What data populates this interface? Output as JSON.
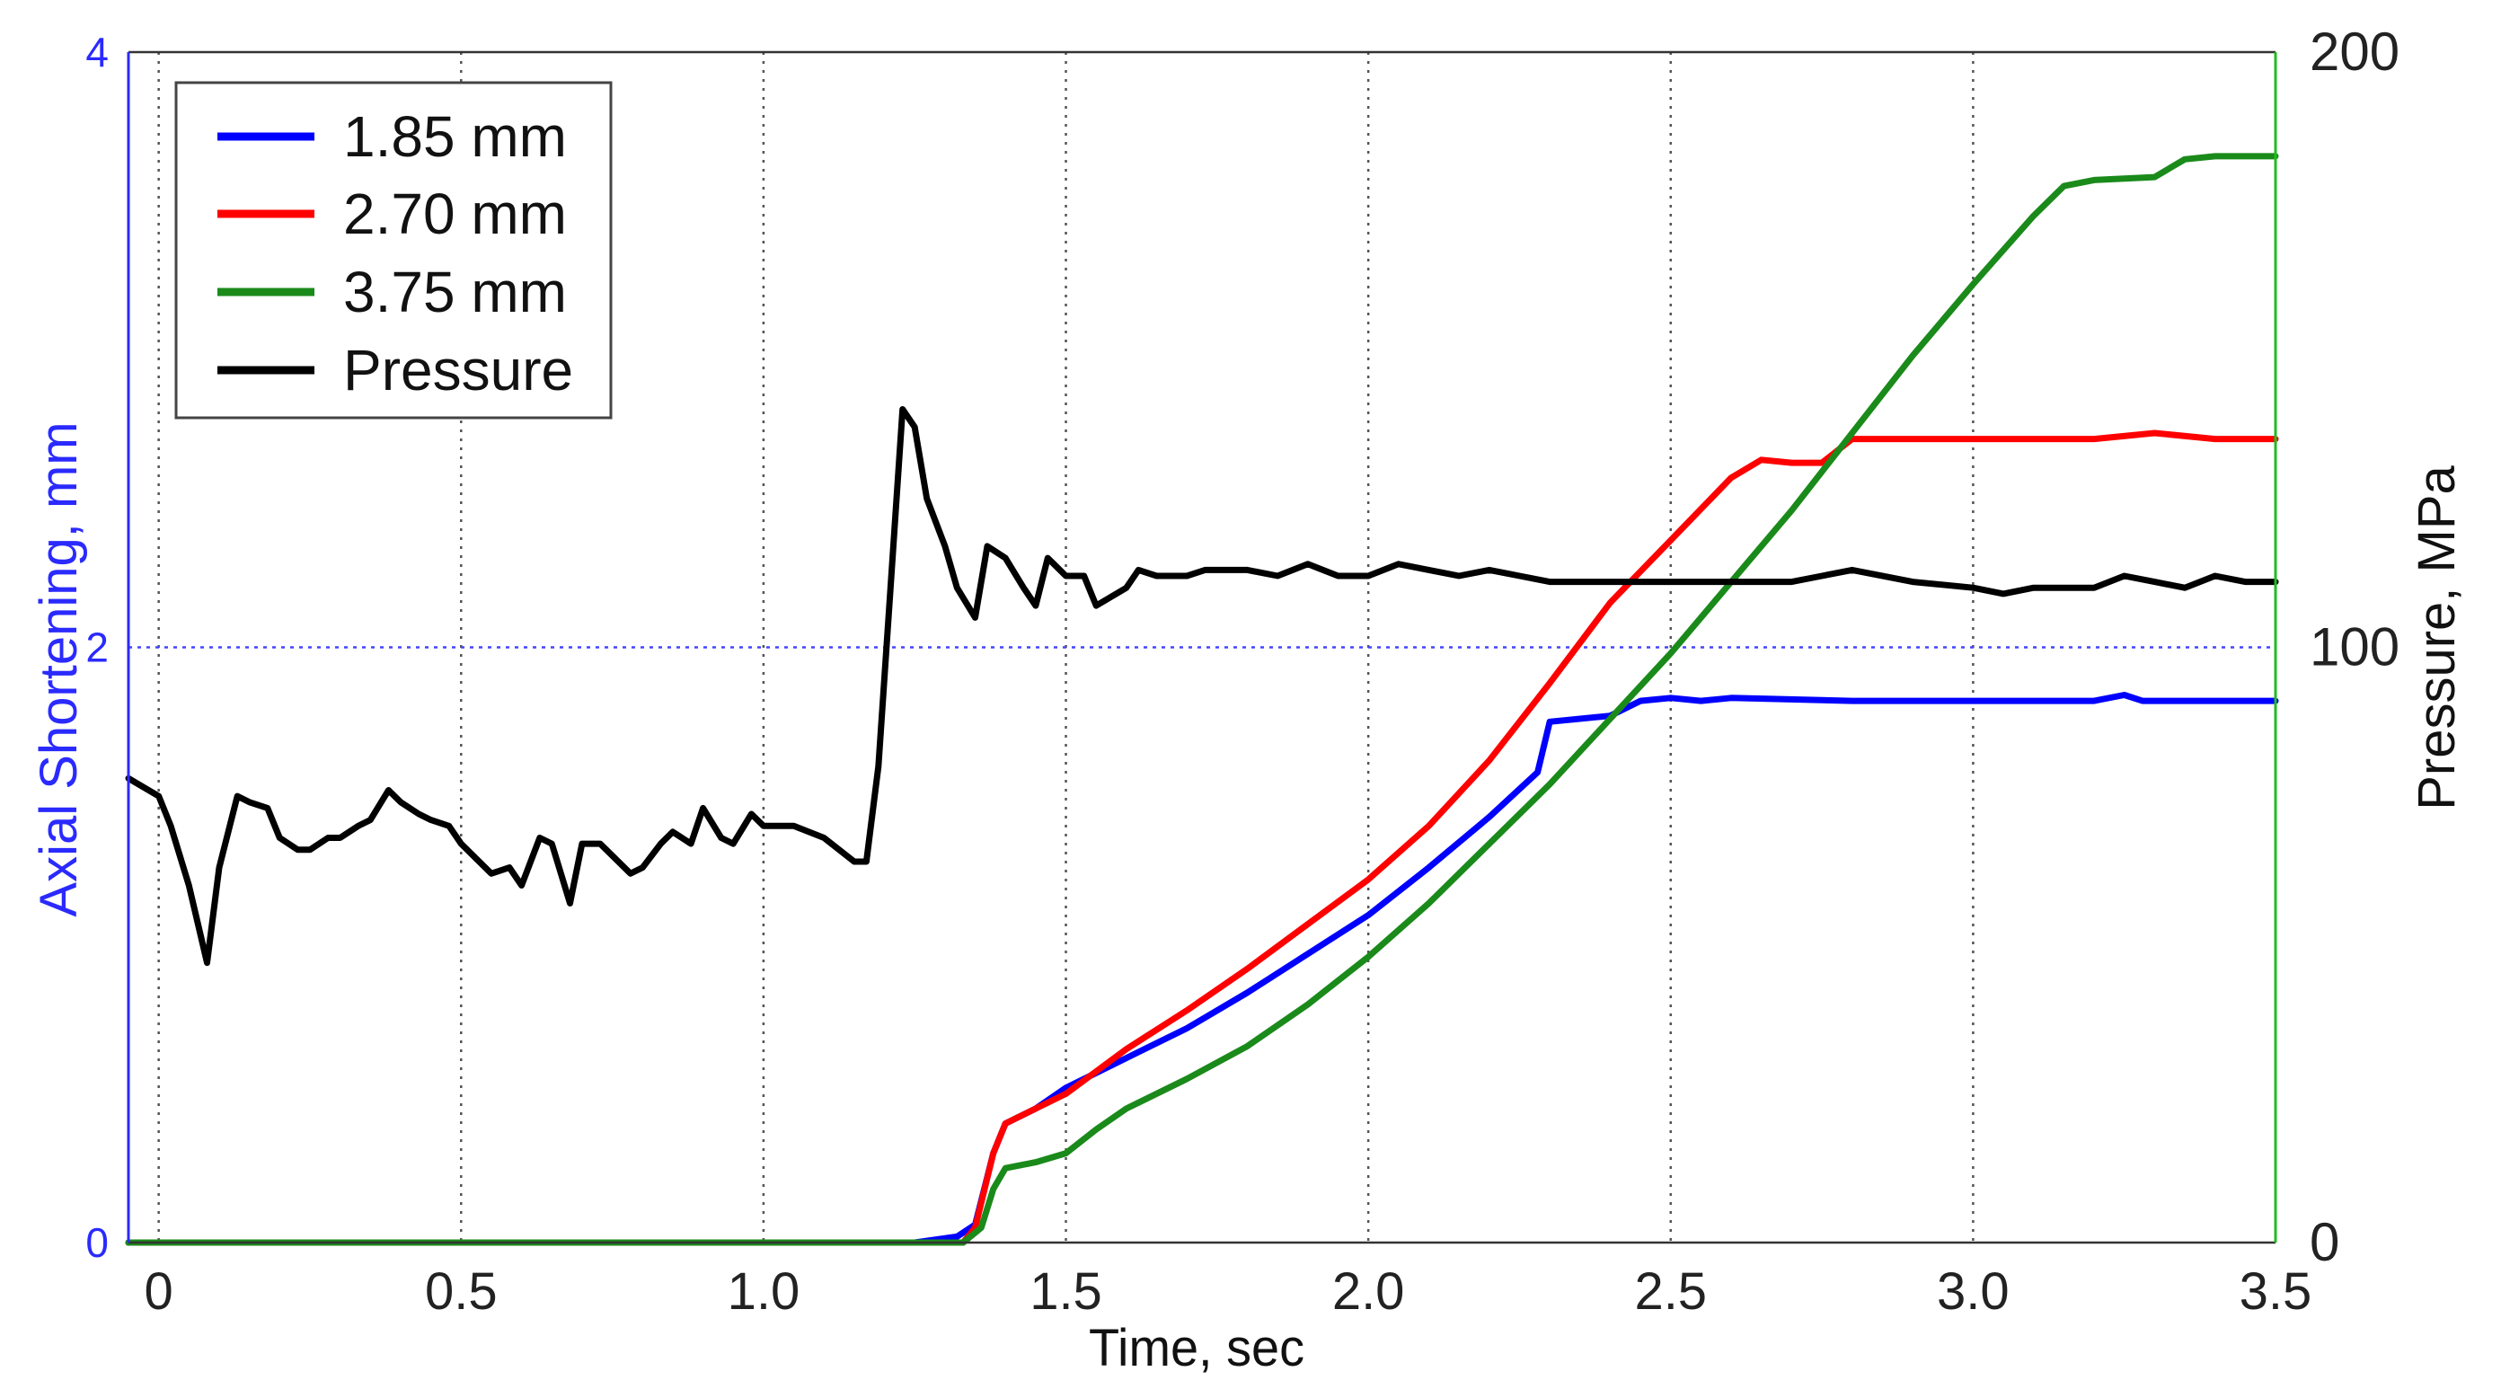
{
  "chart_data": {
    "type": "line",
    "title": "",
    "xlabel": "Time, sec",
    "ylabel": "Axial Shortening, mm",
    "y2label": "Pressure, MPa",
    "xlim": [
      -0.05,
      3.5
    ],
    "ylim": [
      0,
      4
    ],
    "y2lim": [
      0,
      200
    ],
    "x_ticks": [
      "0",
      "0.5",
      "1.0",
      "1.5",
      "2.0",
      "2.5",
      "3.0",
      "3.5"
    ],
    "y_ticks": [
      "0",
      "2",
      "4"
    ],
    "y2_ticks": [
      "0",
      "100",
      "200"
    ],
    "grid": "vertical dotted at x ticks; dotted horizontal at y = 2",
    "legend_position": "top-left",
    "colors": {
      "1.85 mm": "#0000ff",
      "2.70 mm": "#ff0000",
      "3.75 mm": "#1a8a1a",
      "Pressure": "#000000",
      "left_axis": "#2a2aff",
      "right_axis": "#22bb22"
    },
    "series": [
      {
        "name": "1.85 mm",
        "axis": "left",
        "x": [
          -0.05,
          1.25,
          1.32,
          1.35,
          1.38,
          1.4,
          1.45,
          1.5,
          1.6,
          1.7,
          1.8,
          1.9,
          2.0,
          2.1,
          2.2,
          2.28,
          2.3,
          2.4,
          2.45,
          2.5,
          2.55,
          2.6,
          2.8,
          3.0,
          3.2,
          3.25,
          3.28,
          3.3,
          3.5
        ],
        "y": [
          0,
          0,
          0.02,
          0.06,
          0.3,
          0.4,
          0.45,
          0.52,
          0.62,
          0.72,
          0.84,
          0.97,
          1.1,
          1.26,
          1.43,
          1.58,
          1.75,
          1.77,
          1.82,
          1.83,
          1.82,
          1.83,
          1.82,
          1.82,
          1.82,
          1.84,
          1.82,
          1.82,
          1.82
        ]
      },
      {
        "name": "2.70 mm",
        "axis": "left",
        "x": [
          -0.05,
          1.33,
          1.35,
          1.38,
          1.4,
          1.45,
          1.5,
          1.6,
          1.7,
          1.8,
          1.9,
          2.0,
          2.1,
          2.2,
          2.3,
          2.4,
          2.5,
          2.6,
          2.65,
          2.7,
          2.75,
          2.8,
          3.0,
          3.2,
          3.3,
          3.4,
          3.5
        ],
        "y": [
          0,
          0,
          0.05,
          0.3,
          0.4,
          0.45,
          0.5,
          0.65,
          0.78,
          0.92,
          1.07,
          1.22,
          1.4,
          1.62,
          1.88,
          2.15,
          2.36,
          2.57,
          2.63,
          2.62,
          2.62,
          2.7,
          2.7,
          2.7,
          2.72,
          2.7,
          2.7
        ]
      },
      {
        "name": "3.75 mm",
        "axis": "left",
        "x": [
          -0.05,
          1.33,
          1.36,
          1.38,
          1.4,
          1.45,
          1.5,
          1.55,
          1.6,
          1.7,
          1.8,
          1.9,
          2.0,
          2.1,
          2.2,
          2.3,
          2.4,
          2.5,
          2.6,
          2.7,
          2.8,
          2.9,
          3.0,
          3.1,
          3.15,
          3.2,
          3.3,
          3.35,
          3.4,
          3.5
        ],
        "y": [
          0,
          0,
          0.05,
          0.18,
          0.25,
          0.27,
          0.3,
          0.38,
          0.45,
          0.55,
          0.66,
          0.8,
          0.96,
          1.14,
          1.34,
          1.54,
          1.76,
          1.98,
          2.22,
          2.46,
          2.72,
          2.98,
          3.22,
          3.45,
          3.55,
          3.57,
          3.58,
          3.64,
          3.65,
          3.65
        ]
      },
      {
        "name": "Pressure",
        "axis": "right",
        "x": [
          -0.05,
          0.0,
          0.02,
          0.05,
          0.08,
          0.1,
          0.13,
          0.15,
          0.18,
          0.2,
          0.23,
          0.25,
          0.28,
          0.3,
          0.33,
          0.35,
          0.38,
          0.4,
          0.43,
          0.45,
          0.48,
          0.5,
          0.55,
          0.58,
          0.6,
          0.63,
          0.65,
          0.68,
          0.7,
          0.73,
          0.75,
          0.78,
          0.8,
          0.83,
          0.85,
          0.88,
          0.9,
          0.93,
          0.95,
          0.98,
          1.0,
          1.05,
          1.1,
          1.15,
          1.17,
          1.19,
          1.21,
          1.23,
          1.25,
          1.27,
          1.3,
          1.32,
          1.35,
          1.37,
          1.4,
          1.43,
          1.45,
          1.47,
          1.5,
          1.53,
          1.55,
          1.6,
          1.62,
          1.65,
          1.7,
          1.73,
          1.75,
          1.8,
          1.85,
          1.9,
          1.95,
          2.0,
          2.05,
          2.1,
          2.15,
          2.2,
          2.25,
          2.3,
          2.4,
          2.5,
          2.6,
          2.7,
          2.75,
          2.8,
          2.9,
          3.0,
          3.05,
          3.1,
          3.2,
          3.25,
          3.3,
          3.35,
          3.4,
          3.45,
          3.5
        ],
        "y": [
          78,
          75,
          70,
          60,
          47,
          63,
          75,
          74,
          73,
          68,
          66,
          66,
          68,
          68,
          70,
          71,
          76,
          74,
          72,
          71,
          70,
          67,
          62,
          63,
          60,
          68,
          67,
          57,
          67,
          67,
          65,
          62,
          63,
          67,
          69,
          67,
          73,
          68,
          67,
          72,
          70,
          70,
          68,
          64,
          64,
          80,
          110,
          140,
          137,
          125,
          117,
          110,
          105,
          117,
          115,
          110,
          107,
          115,
          112,
          112,
          107,
          110,
          113,
          112,
          112,
          113,
          113,
          113,
          112,
          114,
          112,
          112,
          114,
          113,
          112,
          113,
          112,
          111,
          111,
          111,
          111,
          111,
          112,
          113,
          111,
          110,
          109,
          110,
          110,
          112,
          111,
          110,
          112,
          111,
          111
        ]
      }
    ]
  }
}
